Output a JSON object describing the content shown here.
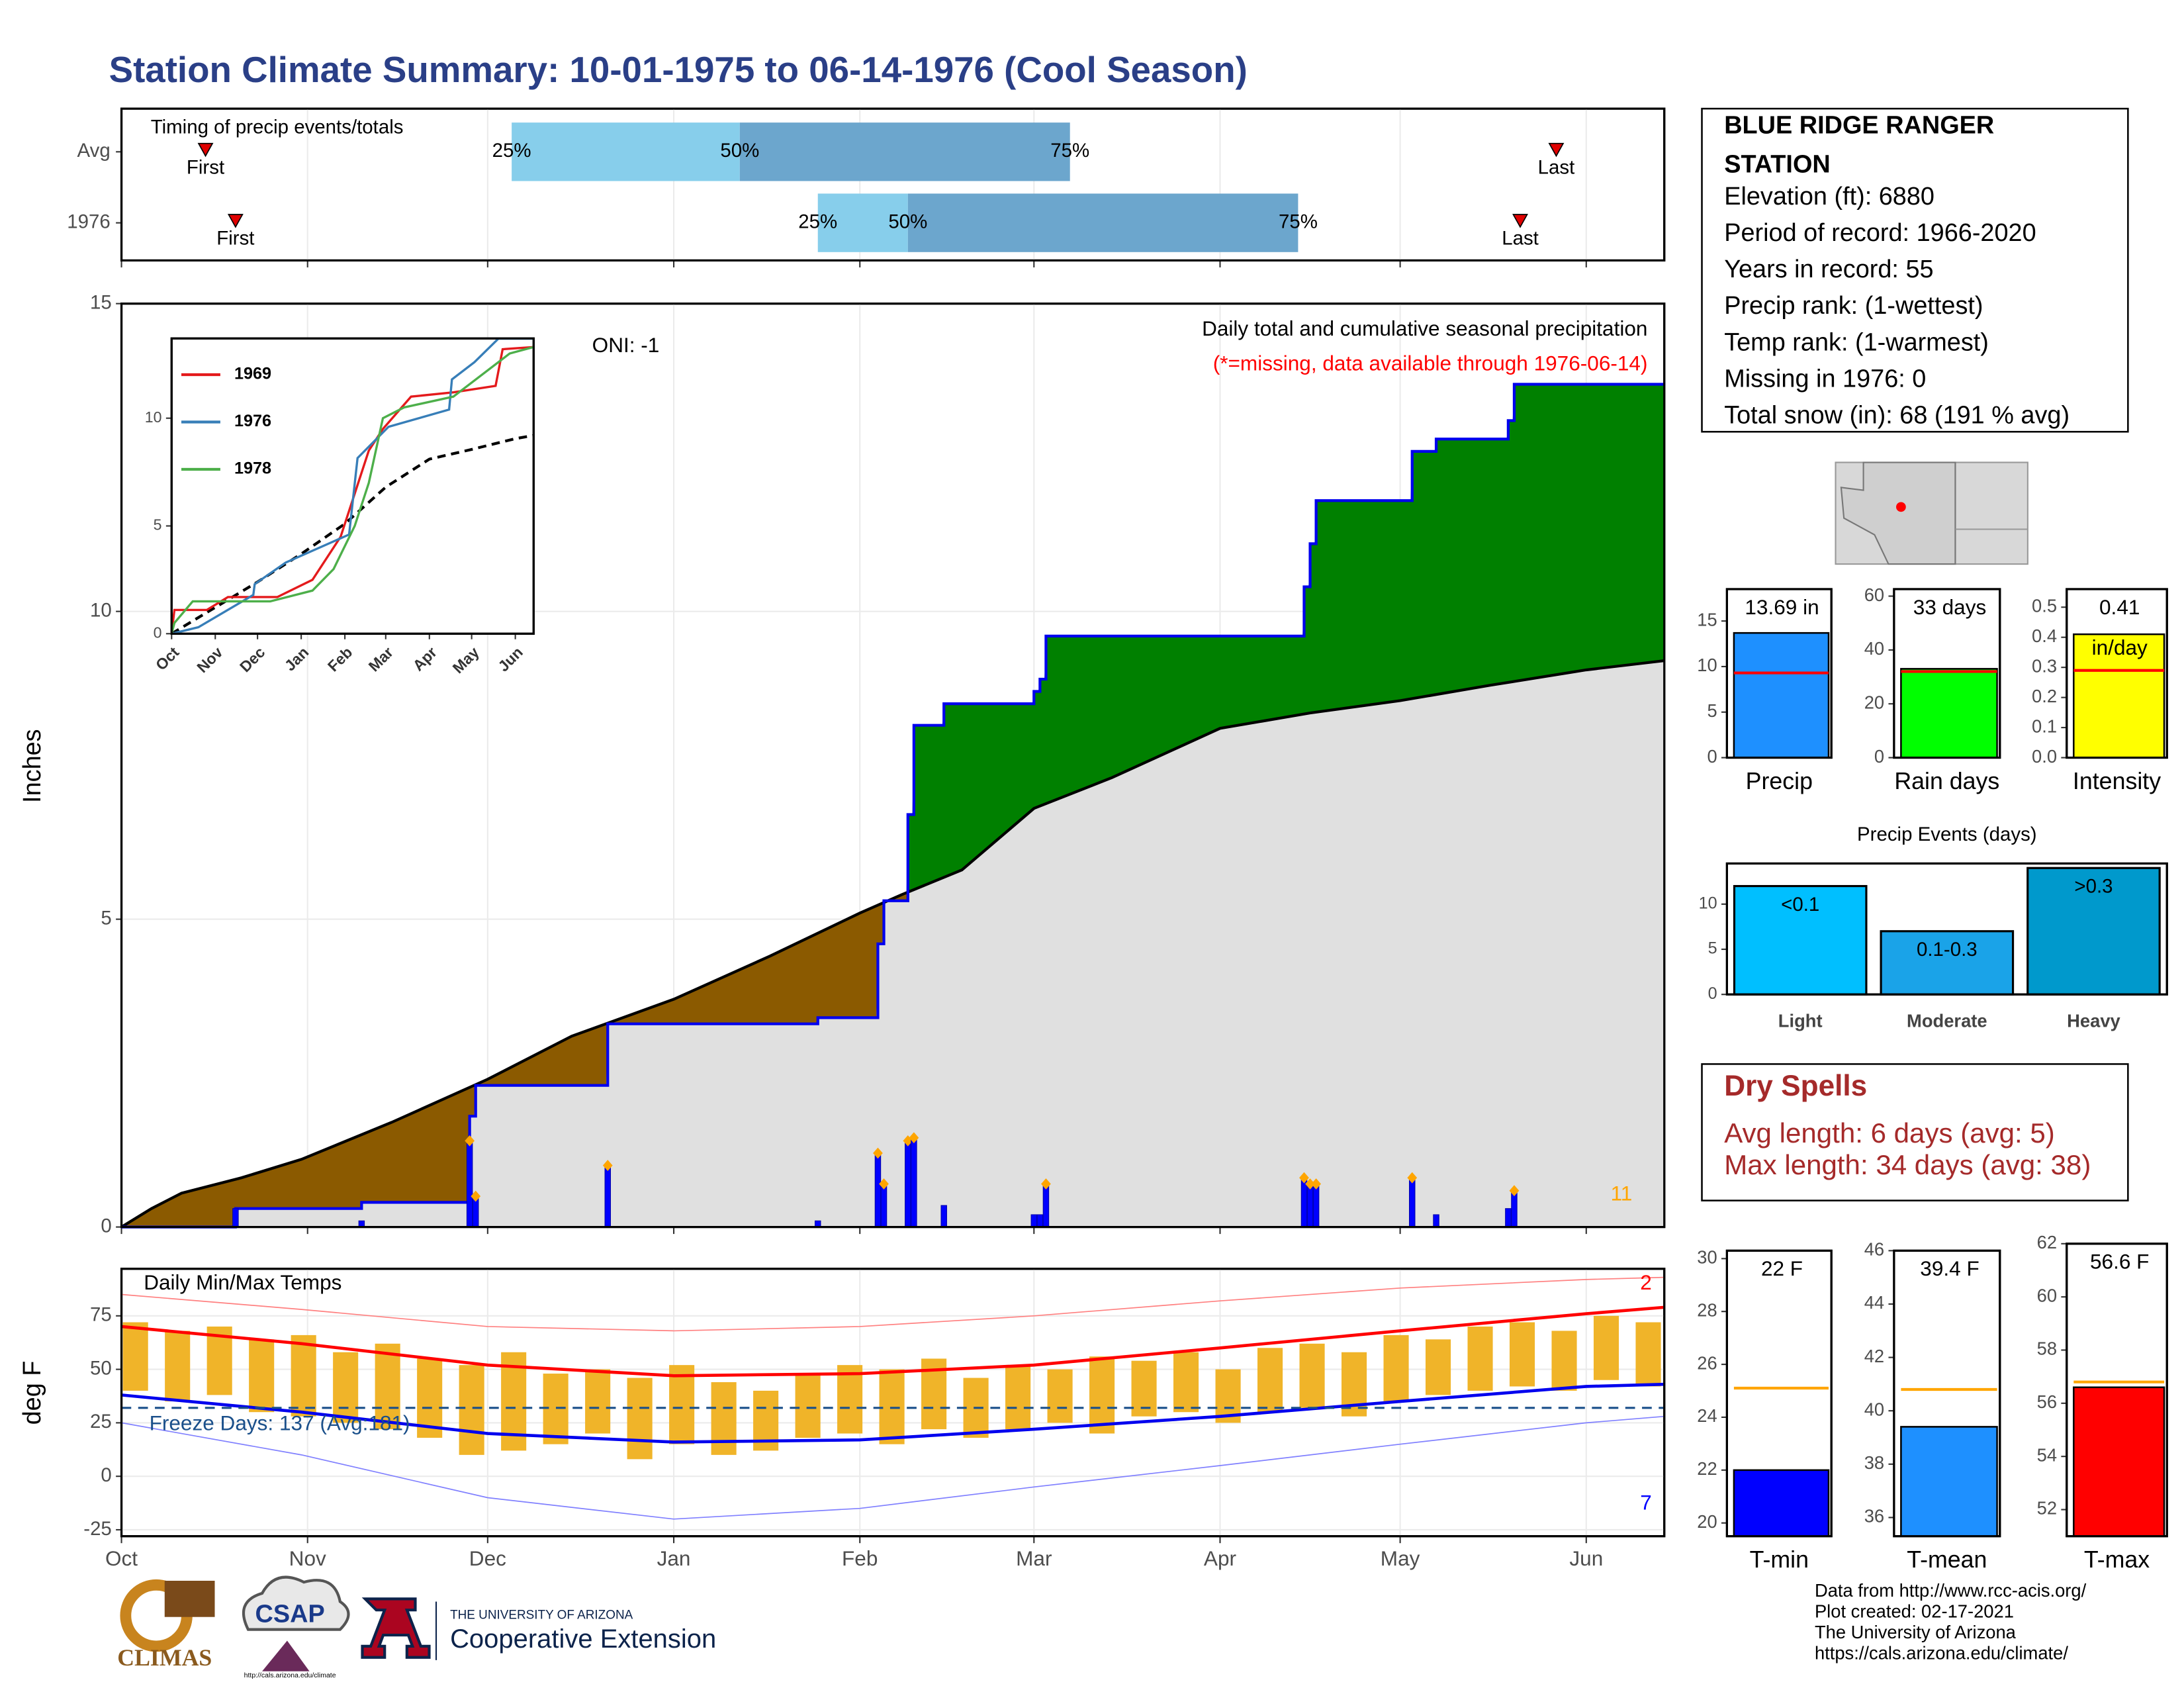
{
  "title": "Station Climate Summary: 10-01-1975 to 06-14-1976 (Cool Season)",
  "station": {
    "name_lines": [
      "BLUE RIDGE RANGER",
      "STATION"
    ],
    "lines": [
      "Elevation (ft): 6880",
      "Period of record: 1966-2020",
      "Years in record: 55",
      "Precip rank:  (1-wettest)",
      "Temp rank:  (1-warmest)",
      "Missing in 1976: 0",
      "Total snow (in): 68 (191 % avg)"
    ]
  },
  "dry_spells": {
    "title": "Dry Spells",
    "lines": [
      "Avg length: 6 days (avg: 5)",
      "Max length: 34 days (avg: 38)"
    ]
  },
  "footer": [
    "Data from http://www.rcc-acis.org/",
    "Plot created: 02-17-2021",
    "The University of Arizona",
    "https://cals.arizona.edu/climate/"
  ],
  "logos": {
    "climas": "CLIMAS",
    "csap": "CSAP",
    "csap_url": "http://cals.arizona.edu/climate",
    "university": "THE UNIVERSITY OF ARIZONA",
    "extension": "Cooperative Extension"
  },
  "chart_data": [
    {
      "type": "timing",
      "title": "Timing of precip events/totals",
      "xlim": [
        0,
        257
      ],
      "xticks": [
        0,
        31,
        61,
        92,
        123,
        152,
        183,
        213,
        244
      ],
      "rows": [
        {
          "name": "Avg",
          "first": 14,
          "q25": 65,
          "q50": 103,
          "q75": 158,
          "last": 239
        },
        {
          "name": "1976",
          "first": 19,
          "q25": 116,
          "q50": 131,
          "q75": 196,
          "last": 233
        }
      ],
      "marker_labels": {
        "first": "First",
        "last": "Last"
      },
      "quantile_labels": {
        "q25": "25%",
        "q50": "50%",
        "q75": "75%"
      },
      "colors": {
        "q25_q50": "#87ceeb",
        "q50_q75": "#6ca6cd",
        "marker": "#e00000"
      }
    },
    {
      "type": "cumulative",
      "y_label": "Inches",
      "annotations": {
        "oni": "ONI: -1",
        "title": "Daily total and cumulative seasonal precipitation",
        "missing": "(*=missing, data available through 1976-06-14)",
        "count": "11"
      },
      "xlim": [
        0,
        257
      ],
      "xticks": [
        0,
        31,
        61,
        92,
        123,
        152,
        183,
        213,
        244
      ],
      "ylim": [
        0,
        15
      ],
      "yticks": [
        0,
        5,
        10,
        15
      ],
      "grid": true,
      "average": {
        "x": [
          0,
          5,
          10,
          20,
          30,
          45,
          61,
          75,
          92,
          108,
          123,
          130,
          140,
          152,
          165,
          183,
          198,
          213,
          228,
          244,
          257
        ],
        "values": [
          0,
          0.3,
          0.55,
          0.8,
          1.1,
          1.7,
          2.4,
          3.1,
          3.7,
          4.4,
          5.1,
          5.4,
          5.8,
          6.8,
          7.3,
          8.1,
          8.35,
          8.55,
          8.8,
          9.05,
          9.2
        ]
      },
      "season": {
        "x": [
          0,
          19,
          40,
          58,
          59,
          81,
          116,
          126,
          127,
          131,
          132,
          137,
          152,
          153,
          154,
          197,
          198,
          199,
          215,
          219,
          231,
          232
        ],
        "values": [
          0,
          0.3,
          0.4,
          1.8,
          2.3,
          3.3,
          3.4,
          4.6,
          5.3,
          6.7,
          8.15,
          8.5,
          8.7,
          8.9,
          9.6,
          10.4,
          11.1,
          11.8,
          12.6,
          12.8,
          13.1,
          13.69
        ]
      },
      "daily": {
        "x": [
          19,
          40,
          58,
          59,
          81,
          116,
          126,
          127,
          131,
          132,
          137,
          152,
          153,
          154,
          197,
          198,
          199,
          215,
          219,
          231,
          232
        ],
        "values": [
          0.3,
          0.1,
          1.4,
          0.5,
          1.0,
          0.1,
          1.2,
          0.7,
          1.4,
          1.45,
          0.35,
          0.2,
          0.2,
          0.7,
          0.8,
          0.7,
          0.7,
          0.8,
          0.2,
          0.3,
          0.59
        ]
      },
      "colors": {
        "surplus": "#008000",
        "deficit": "#8b5a00",
        "average_fill": "#e0e0e0",
        "average_line": "#000000",
        "season_line": "#0000ee",
        "daily": "#0000ff",
        "marker": "#ffa500",
        "count": "#ffa500",
        "missing": "#ff0000"
      }
    },
    {
      "type": "line",
      "xlim": [
        0,
        257
      ],
      "xticks": [
        {
          "value": 0,
          "label": "Oct"
        },
        {
          "value": 31,
          "label": "Nov"
        },
        {
          "value": 61,
          "label": "Dec"
        },
        {
          "value": 92,
          "label": "Jan"
        },
        {
          "value": 123,
          "label": "Feb"
        },
        {
          "value": 152,
          "label": "Mar"
        },
        {
          "value": 183,
          "label": "Apr"
        },
        {
          "value": 213,
          "label": "May"
        },
        {
          "value": 244,
          "label": "Jun"
        }
      ],
      "ylim": [
        0,
        13.7
      ],
      "yticks": [
        0,
        5,
        10
      ],
      "series": [
        {
          "name": "1969",
          "color": "#e41a1c",
          "x": [
            0,
            2,
            25,
            40,
            75,
            100,
            120,
            130,
            140,
            150,
            170,
            200,
            230,
            235,
            257
          ],
          "values": [
            0,
            1.1,
            1.1,
            1.7,
            1.7,
            2.5,
            4.5,
            6.5,
            8.5,
            9.5,
            11,
            11.2,
            11.5,
            13.2,
            13.3
          ]
        },
        {
          "name": "1976",
          "color": "#377eb8",
          "x": [
            0,
            19,
            58,
            59,
            81,
            126,
            132,
            154,
            197,
            199,
            215,
            232,
            257
          ],
          "values": [
            0,
            0.3,
            1.8,
            2.3,
            3.3,
            4.6,
            8.15,
            9.6,
            10.4,
            11.8,
            12.6,
            13.69,
            13.69
          ]
        },
        {
          "name": "1978",
          "color": "#4daf4a",
          "x": [
            0,
            2,
            15,
            70,
            100,
            115,
            130,
            140,
            150,
            165,
            200,
            240,
            257
          ],
          "values": [
            0,
            0.5,
            1.5,
            1.5,
            2,
            3,
            5,
            7,
            10,
            10.5,
            11,
            13,
            13.3
          ]
        }
      ],
      "average": {
        "color": "#000000",
        "x": [
          0,
          61,
          92,
          123,
          152,
          183,
          213,
          244,
          257
        ],
        "values": [
          0,
          2.4,
          3.7,
          5.1,
          6.8,
          8.1,
          8.55,
          9.05,
          9.2
        ]
      }
    },
    {
      "type": "temperature",
      "title": "Daily Min/Max Temps",
      "y_label": "deg F",
      "freeze_label": "Freeze Days: 137 (Avg:181)",
      "record_high_count": "2",
      "record_low_count": "7",
      "xlim": [
        0,
        257
      ],
      "xticks": [
        {
          "value": 0,
          "label": "Oct"
        },
        {
          "value": 31,
          "label": "Nov"
        },
        {
          "value": 61,
          "label": "Dec"
        },
        {
          "value": 92,
          "label": "Jan"
        },
        {
          "value": 123,
          "label": "Feb"
        },
        {
          "value": 152,
          "label": "Mar"
        },
        {
          "value": 183,
          "label": "Apr"
        },
        {
          "value": 213,
          "label": "May"
        },
        {
          "value": 244,
          "label": "Jun"
        }
      ],
      "ylim": [
        -28,
        97
      ],
      "yticks": [
        -25,
        0,
        25,
        50,
        75
      ],
      "grid": true,
      "freeze_line": 32,
      "daily": {
        "color": "#f0b429",
        "x": [
          0,
          7,
          14,
          21,
          28,
          35,
          42,
          49,
          56,
          63,
          70,
          77,
          84,
          91,
          98,
          105,
          112,
          119,
          126,
          133,
          140,
          147,
          154,
          161,
          168,
          175,
          182,
          189,
          196,
          203,
          210,
          217,
          224,
          231,
          238,
          245,
          252
        ],
        "high": [
          72,
          68,
          70,
          64,
          66,
          58,
          62,
          55,
          52,
          58,
          48,
          50,
          46,
          52,
          44,
          40,
          48,
          52,
          50,
          55,
          46,
          52,
          50,
          56,
          54,
          58,
          50,
          60,
          62,
          58,
          66,
          64,
          70,
          72,
          68,
          75,
          72
        ],
        "low": [
          40,
          35,
          38,
          30,
          28,
          25,
          22,
          18,
          10,
          12,
          15,
          20,
          8,
          15,
          10,
          12,
          18,
          20,
          15,
          22,
          18,
          22,
          25,
          20,
          28,
          30,
          25,
          30,
          32,
          28,
          35,
          38,
          40,
          42,
          40,
          45,
          42
        ]
      },
      "avg_high": {
        "color": "#ff0000",
        "x": [
          0,
          30,
          61,
          92,
          123,
          152,
          183,
          213,
          244,
          257
        ],
        "values": [
          70,
          62,
          52,
          47,
          48,
          52,
          60,
          68,
          76,
          79
        ]
      },
      "avg_low": {
        "color": "#0000ee",
        "x": [
          0,
          30,
          61,
          92,
          123,
          152,
          183,
          213,
          244,
          257
        ],
        "values": [
          38,
          30,
          20,
          16,
          17,
          22,
          28,
          35,
          42,
          43
        ]
      },
      "record_high": {
        "color": "#ff8080",
        "x": [
          0,
          30,
          61,
          92,
          123,
          152,
          183,
          213,
          244,
          257
        ],
        "values": [
          85,
          78,
          70,
          68,
          70,
          75,
          82,
          88,
          92,
          93
        ]
      },
      "record_low": {
        "color": "#8080ff",
        "x": [
          0,
          30,
          61,
          92,
          123,
          152,
          183,
          213,
          244,
          257
        ],
        "values": [
          25,
          10,
          -10,
          -20,
          -15,
          -5,
          5,
          15,
          25,
          28
        ]
      },
      "freeze_color": "#1a4f8a"
    },
    {
      "type": "mini_bar",
      "categories": [
        "Precip"
      ],
      "values": [
        13.69
      ],
      "value_labels": [
        "13.69 in"
      ],
      "average": 9.3,
      "ylim": [
        0,
        18.5
      ],
      "yticks": [
        0,
        5,
        10,
        15
      ],
      "color": "#1e90ff",
      "average_color": "#ff0000"
    },
    {
      "type": "mini_bar",
      "categories": [
        "Rain days"
      ],
      "values": [
        33
      ],
      "value_labels": [
        "33 days"
      ],
      "average": 32,
      "ylim": [
        0,
        62.6
      ],
      "yticks": [
        0,
        20,
        40,
        60
      ],
      "color": "#00ff00",
      "average_color": "#ff0000"
    },
    {
      "type": "mini_bar",
      "categories": [
        "Intensity"
      ],
      "values": [
        0.41
      ],
      "unit": "in/day",
      "average": 0.29,
      "ylim": [
        0,
        0.56
      ],
      "yticks": [
        {
          "value": 0,
          "label": "0.0"
        },
        0.1,
        0.2,
        0.3,
        0.4,
        0.5
      ],
      "color": "#ffff00",
      "average_color": "#ff0000"
    },
    {
      "type": "events_bar",
      "title": "Precip Events (days)",
      "categories": [
        "Light",
        "Moderate",
        "Heavy"
      ],
      "values": [
        12,
        7,
        14
      ],
      "bin_labels": [
        "<0.1",
        "0.1-0.3",
        ">0.3"
      ],
      "colors": [
        "#00bfff",
        "#1aa3e8",
        "#0099cc"
      ],
      "ylim": [
        0,
        14.5
      ],
      "yticks": [
        0,
        5,
        10
      ]
    },
    {
      "type": "mini_bar",
      "categories": [
        "T-min"
      ],
      "values": [
        22
      ],
      "value_labels": [
        "22 F"
      ],
      "average": 25.1,
      "ylim": [
        19.5,
        30.3
      ],
      "yticks": [
        20,
        22,
        24,
        26,
        28,
        30
      ],
      "color": "#0000ff",
      "average_color": "#ffa500"
    },
    {
      "type": "mini_bar",
      "categories": [
        "T-mean"
      ],
      "values": [
        39.4
      ],
      "value_labels": [
        "39.4 F"
      ],
      "average": 40.8,
      "ylim": [
        35.3,
        46
      ],
      "yticks": [
        36,
        38,
        40,
        42,
        44,
        46
      ],
      "color": "#1e90ff",
      "average_color": "#ffa500"
    },
    {
      "type": "mini_bar",
      "categories": [
        "T-max"
      ],
      "values": [
        56.6
      ],
      "value_labels": [
        "56.6 F"
      ],
      "average": 56.8,
      "ylim": [
        51,
        62
      ],
      "yticks": [
        52,
        54,
        56,
        58,
        60,
        62
      ],
      "color": "#ff0000",
      "average_color": "#ffa500"
    }
  ]
}
